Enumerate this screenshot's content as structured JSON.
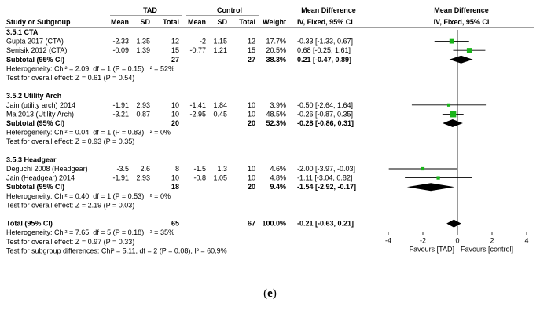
{
  "headers": {
    "group1": "TAD",
    "group2": "Control",
    "md_top": "Mean Difference",
    "md_top_plot": "Mean Difference",
    "study": "Study or Subgroup",
    "mean1": "Mean",
    "sd1": "SD",
    "total1": "Total",
    "mean2": "Mean",
    "sd2": "SD",
    "total2": "Total",
    "weight": "Weight",
    "md_method": "IV, Fixed, 95% CI",
    "md_method_plot": "IV, Fixed, 95% CI"
  },
  "rows": [
    {
      "kind": "subgroup",
      "label": "3.5.1 CTA"
    },
    {
      "kind": "study",
      "label": "Gupta 2017 (CTA)",
      "mean1": "-2.33",
      "sd1": "1.35",
      "n1": "12",
      "mean2": "-2",
      "sd2": "1.15",
      "n2": "12",
      "weight": "17.7%",
      "ci": "-0.33 [-1.33, 0.67]",
      "md": -0.33,
      "lo": -1.33,
      "hi": 0.67,
      "w": 17.7
    },
    {
      "kind": "study",
      "label": "Senisik 2012 (CTA)",
      "mean1": "-0.09",
      "sd1": "1.39",
      "n1": "15",
      "mean2": "-0.77",
      "sd2": "1.21",
      "n2": "15",
      "weight": "20.5%",
      "ci": "0.68 [-0.25, 1.61]",
      "md": 0.68,
      "lo": -0.25,
      "hi": 1.61,
      "w": 20.5
    },
    {
      "kind": "subtotal",
      "label": "Subtotal (95% CI)",
      "n1": "27",
      "n2": "27",
      "weight": "38.3%",
      "ci": "0.21 [-0.47, 0.89]",
      "md": 0.21,
      "lo": -0.47,
      "hi": 0.89
    },
    {
      "kind": "note",
      "label": "Heterogeneity: Chi² = 2.09, df = 1 (P = 0.15); I² = 52%"
    },
    {
      "kind": "note",
      "label": "Test for overall effect: Z = 0.61 (P = 0.54)"
    },
    {
      "kind": "blank"
    },
    {
      "kind": "subgroup",
      "label": "3.5.2 Utility Arch"
    },
    {
      "kind": "study",
      "label": "Jain (utility arch) 2014",
      "mean1": "-1.91",
      "sd1": "2.93",
      "n1": "10",
      "mean2": "-1.41",
      "sd2": "1.84",
      "n2": "10",
      "weight": "3.9%",
      "ci": "-0.50 [-2.64, 1.64]",
      "md": -0.5,
      "lo": -2.64,
      "hi": 1.64,
      "w": 3.9
    },
    {
      "kind": "study",
      "label": "Ma 2013 (Utility Arch)",
      "mean1": "-3.21",
      "sd1": "0.87",
      "n1": "10",
      "mean2": "-2.95",
      "sd2": "0.45",
      "n2": "10",
      "weight": "48.5%",
      "ci": "-0.26 [-0.87, 0.35]",
      "md": -0.26,
      "lo": -0.87,
      "hi": 0.35,
      "w": 48.5
    },
    {
      "kind": "subtotal",
      "label": "Subtotal (95% CI)",
      "n1": "20",
      "n2": "20",
      "weight": "52.3%",
      "ci": "-0.28 [-0.86, 0.31]",
      "md": -0.28,
      "lo": -0.86,
      "hi": 0.31
    },
    {
      "kind": "note",
      "label": "Heterogeneity: Chi² = 0.04, df = 1 (P = 0.83); I² = 0%"
    },
    {
      "kind": "note",
      "label": "Test for overall effect: Z = 0.93 (P = 0.35)"
    },
    {
      "kind": "blank"
    },
    {
      "kind": "subgroup",
      "label": "3.5.3 Headgear"
    },
    {
      "kind": "study",
      "label": "Deguchi 2008 (Headgear)",
      "mean1": "-3.5",
      "sd1": "2.6",
      "n1": "8",
      "mean2": "-1.5",
      "sd2": "1.3",
      "n2": "10",
      "weight": "4.6%",
      "ci": "-2.00 [-3.97, -0.03]",
      "md": -2.0,
      "lo": -3.97,
      "hi": -0.03,
      "w": 4.6
    },
    {
      "kind": "study",
      "label": "Jain (Headgear) 2014",
      "mean1": "-1.91",
      "sd1": "2.93",
      "n1": "10",
      "mean2": "-0.8",
      "sd2": "1.05",
      "n2": "10",
      "weight": "4.8%",
      "ci": "-1.11 [-3.04, 0.82]",
      "md": -1.11,
      "lo": -3.04,
      "hi": 0.82,
      "w": 4.8
    },
    {
      "kind": "subtotal",
      "label": "Subtotal (95% CI)",
      "n1": "18",
      "n2": "20",
      "weight": "9.4%",
      "ci": "-1.54 [-2.92, -0.17]",
      "md": -1.54,
      "lo": -2.92,
      "hi": -0.17
    },
    {
      "kind": "note",
      "label": "Heterogeneity: Chi² = 0.40, df = 1 (P = 0.53); I² = 0%"
    },
    {
      "kind": "note",
      "label": "Test for overall effect: Z = 2.19 (P = 0.03)"
    },
    {
      "kind": "blank"
    },
    {
      "kind": "total",
      "label": "Total (95% CI)",
      "n1": "65",
      "n2": "67",
      "weight": "100.0%",
      "ci": "-0.21 [-0.63, 0.21]",
      "md": -0.21,
      "lo": -0.63,
      "hi": 0.21
    },
    {
      "kind": "note",
      "label": "Heterogeneity: Chi² = 7.65, df = 5 (P = 0.18); I² = 35%"
    },
    {
      "kind": "note",
      "label": "Test for overall effect: Z = 0.97 (P = 0.33)"
    },
    {
      "kind": "note",
      "label": "Test for subgroup differences: Chi² = 5.11, df = 2 (P = 0.08), I² = 60.9%"
    }
  ],
  "axis": {
    "min": -4,
    "max": 4,
    "ticks": [
      "-4",
      "-2",
      "0",
      "2",
      "4"
    ]
  },
  "favours_left": "Favours [TAD]",
  "favours_right": "Favours [control]",
  "caption_letter": "e",
  "colors": {
    "study_marker": "#19b419",
    "diamond": "#000000",
    "line": "#000000"
  },
  "chart_data": {
    "type": "forest",
    "title": "",
    "xlabel": "Mean Difference IV, Fixed, 95% CI",
    "xlim": [
      -4,
      4
    ],
    "studies": [
      {
        "subgroup": "3.5.1 CTA",
        "name": "Gupta 2017 (CTA)",
        "md": -0.33,
        "lo": -1.33,
        "hi": 0.67,
        "weight": 17.7
      },
      {
        "subgroup": "3.5.1 CTA",
        "name": "Senisik 2012 (CTA)",
        "md": 0.68,
        "lo": -0.25,
        "hi": 1.61,
        "weight": 20.5
      },
      {
        "subgroup": "3.5.2 Utility Arch",
        "name": "Jain (utility arch) 2014",
        "md": -0.5,
        "lo": -2.64,
        "hi": 1.64,
        "weight": 3.9
      },
      {
        "subgroup": "3.5.2 Utility Arch",
        "name": "Ma 2013 (Utility Arch)",
        "md": -0.26,
        "lo": -0.87,
        "hi": 0.35,
        "weight": 48.5
      },
      {
        "subgroup": "3.5.3 Headgear",
        "name": "Deguchi 2008 (Headgear)",
        "md": -2.0,
        "lo": -3.97,
        "hi": -0.03,
        "weight": 4.6
      },
      {
        "subgroup": "3.5.3 Headgear",
        "name": "Jain (Headgear) 2014",
        "md": -1.11,
        "lo": -3.04,
        "hi": 0.82,
        "weight": 4.8
      }
    ],
    "pooled": [
      {
        "name": "Subtotal 3.5.1 CTA",
        "md": 0.21,
        "lo": -0.47,
        "hi": 0.89
      },
      {
        "name": "Subtotal 3.5.2 Utility Arch",
        "md": -0.28,
        "lo": -0.86,
        "hi": 0.31
      },
      {
        "name": "Subtotal 3.5.3 Headgear",
        "md": -1.54,
        "lo": -2.92,
        "hi": -0.17
      },
      {
        "name": "Total (95% CI)",
        "md": -0.21,
        "lo": -0.63,
        "hi": 0.21
      }
    ]
  }
}
